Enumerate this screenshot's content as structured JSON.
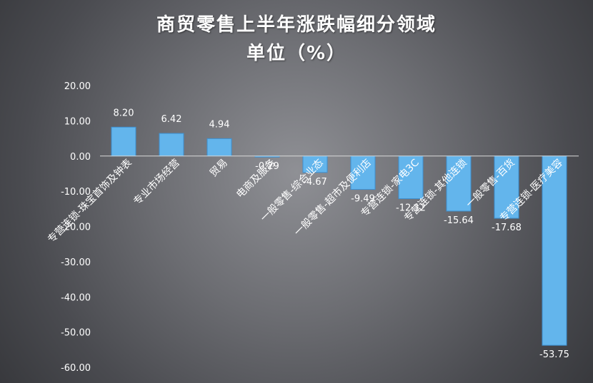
{
  "chart_data": {
    "type": "bar",
    "title": "商贸零售上半年涨跌幅细分领域",
    "subtitle": "单位（%）",
    "categories": [
      "专营连锁-珠宝首饰及钟表",
      "专业市场经营",
      "贸易",
      "电商及服务",
      "一般零售-综合业态",
      "一般零售-超市及便利店",
      "专营连锁-家电3C",
      "专营连锁-其他连锁",
      "一般零售-百货",
      "专营连锁-医疗美容"
    ],
    "values": [
      8.2,
      6.42,
      4.94,
      -0.29,
      -4.67,
      -9.49,
      -12.12,
      -15.64,
      -17.68,
      -53.75
    ],
    "data_labels": [
      "8.20",
      "6.42",
      "4.94",
      "-0.29",
      "-4.67",
      "-9.49",
      "-12.12",
      "-15.64",
      "-17.68",
      "-53.75"
    ],
    "y_ticks": [
      "20.00",
      "10.00",
      "0.00",
      "-10.00",
      "-20.00",
      "-30.00",
      "-40.00",
      "-50.00",
      "-60.00"
    ],
    "ylim": [
      -60,
      20
    ],
    "grid": false,
    "legend": "none",
    "bar_color": "#63b5ec"
  }
}
